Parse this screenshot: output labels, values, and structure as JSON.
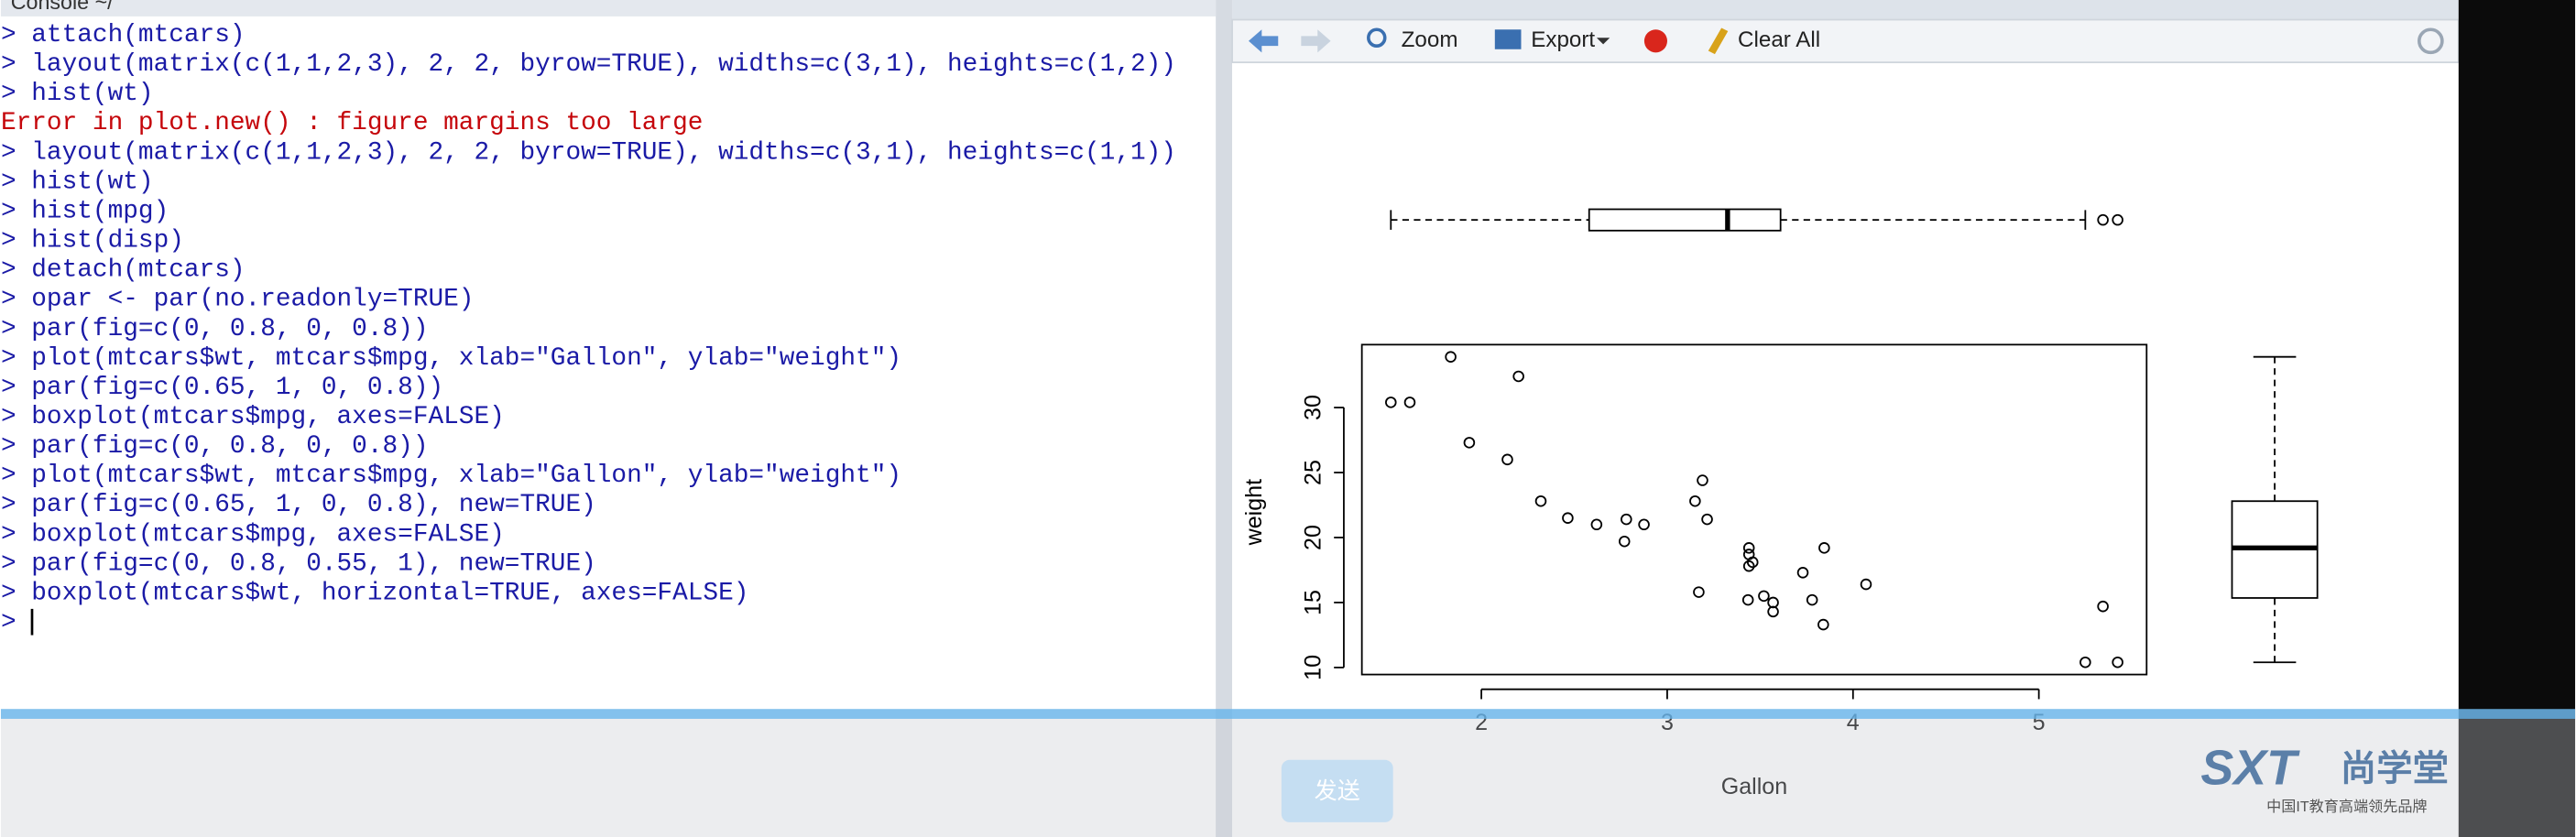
{
  "console": {
    "tab": "Console ~/",
    "lines": [
      {
        "text": "> attach(mtcars)",
        "color": "#1a1aa6"
      },
      {
        "text": "> layout(matrix(c(1,1,2,3), 2, 2, byrow=TRUE), widths=c(3,1), heights=c(1,2))",
        "color": "#1a1aa6"
      },
      {
        "text": "> hist(wt)",
        "color": "#1a1aa6"
      },
      {
        "text": "Error in plot.new() : figure margins too large",
        "color": "#c5060b"
      },
      {
        "text": "> layout(matrix(c(1,1,2,3), 2, 2, byrow=TRUE), widths=c(3,1), heights=c(1,1))",
        "color": "#1a1aa6"
      },
      {
        "text": "> hist(wt)",
        "color": "#1a1aa6"
      },
      {
        "text": "> hist(mpg)",
        "color": "#1a1aa6"
      },
      {
        "text": "> hist(disp)",
        "color": "#1a1aa6"
      },
      {
        "text": "> detach(mtcars)",
        "color": "#1a1aa6"
      },
      {
        "text": "> opar <- par(no.readonly=TRUE)",
        "color": "#1a1aa6"
      },
      {
        "text": "> par(fig=c(0, 0.8, 0, 0.8))",
        "color": "#1a1aa6"
      },
      {
        "text": "> plot(mtcars$wt, mtcars$mpg, xlab=\"Gallon\", ylab=\"weight\")",
        "color": "#1a1aa6"
      },
      {
        "text": "> par(fig=c(0.65, 1, 0, 0.8))",
        "color": "#1a1aa6"
      },
      {
        "text": "> boxplot(mtcars$mpg, axes=FALSE)",
        "color": "#1a1aa6"
      },
      {
        "text": "> par(fig=c(0, 0.8, 0, 0.8))",
        "color": "#1a1aa6"
      },
      {
        "text": "> plot(mtcars$wt, mtcars$mpg, xlab=\"Gallon\", ylab=\"weight\")",
        "color": "#1a1aa6"
      },
      {
        "text": "> par(fig=c(0.65, 1, 0, 0.8), new=TRUE)",
        "color": "#1a1aa6"
      },
      {
        "text": "> boxplot(mtcars$mpg, axes=FALSE)",
        "color": "#1a1aa6"
      },
      {
        "text": "> par(fig=c(0, 0.8, 0.55, 1), new=TRUE)",
        "color": "#1a1aa6"
      },
      {
        "text": "> boxplot(mtcars$wt, horizontal=TRUE, axes=FALSE)",
        "color": "#1a1aa6"
      },
      {
        "text": ">",
        "color": "#1a1aa6"
      }
    ]
  },
  "toolbar": {
    "zoom": "Zoom",
    "export": "Export",
    "clear": "Clear All"
  },
  "overlay": {
    "send": "发送",
    "brand": "SXT",
    "brand_cn": "尚学堂",
    "slogan": "中国IT教育高端领先品牌"
  },
  "chart_data": [
    {
      "type": "scatter",
      "x_label": "Gallon",
      "y_label": "weight",
      "x": [
        2.62,
        2.875,
        2.32,
        3.215,
        3.44,
        3.46,
        3.57,
        3.19,
        3.15,
        3.44,
        3.44,
        4.07,
        3.73,
        3.78,
        5.25,
        5.424,
        5.345,
        2.2,
        1.615,
        1.835,
        2.465,
        3.52,
        3.435,
        3.84,
        3.845,
        1.935,
        2.14,
        1.513,
        3.17,
        2.77,
        3.57,
        2.78
      ],
      "values": [
        21.0,
        21.0,
        22.8,
        21.4,
        18.7,
        18.1,
        14.3,
        24.4,
        22.8,
        19.2,
        17.8,
        16.4,
        17.3,
        15.2,
        10.4,
        10.4,
        14.7,
        32.4,
        30.4,
        33.9,
        21.5,
        15.5,
        15.2,
        13.3,
        19.2,
        27.3,
        26.0,
        30.4,
        15.8,
        19.7,
        15.0,
        21.4
      ],
      "color": "#000000",
      "xlim": [
        1.357,
        5.58
      ],
      "ylim": [
        9.46,
        34.84
      ],
      "xticks": [
        2,
        3,
        4,
        5
      ],
      "yticks": [
        10,
        15,
        20,
        25,
        30
      ]
    },
    {
      "type": "box",
      "orientation": "horizontal",
      "xlim": [
        1.357,
        5.58
      ],
      "min": 1.513,
      "q1": 2.58,
      "median": 3.325,
      "q3": 3.61,
      "max": 5.25,
      "outliers": [
        5.345,
        5.424
      ]
    },
    {
      "type": "box",
      "orientation": "vertical",
      "ylim": [
        9.46,
        34.84
      ],
      "min": 10.4,
      "q1": 15.35,
      "median": 19.2,
      "q3": 22.8,
      "max": 33.9,
      "outliers": []
    }
  ]
}
